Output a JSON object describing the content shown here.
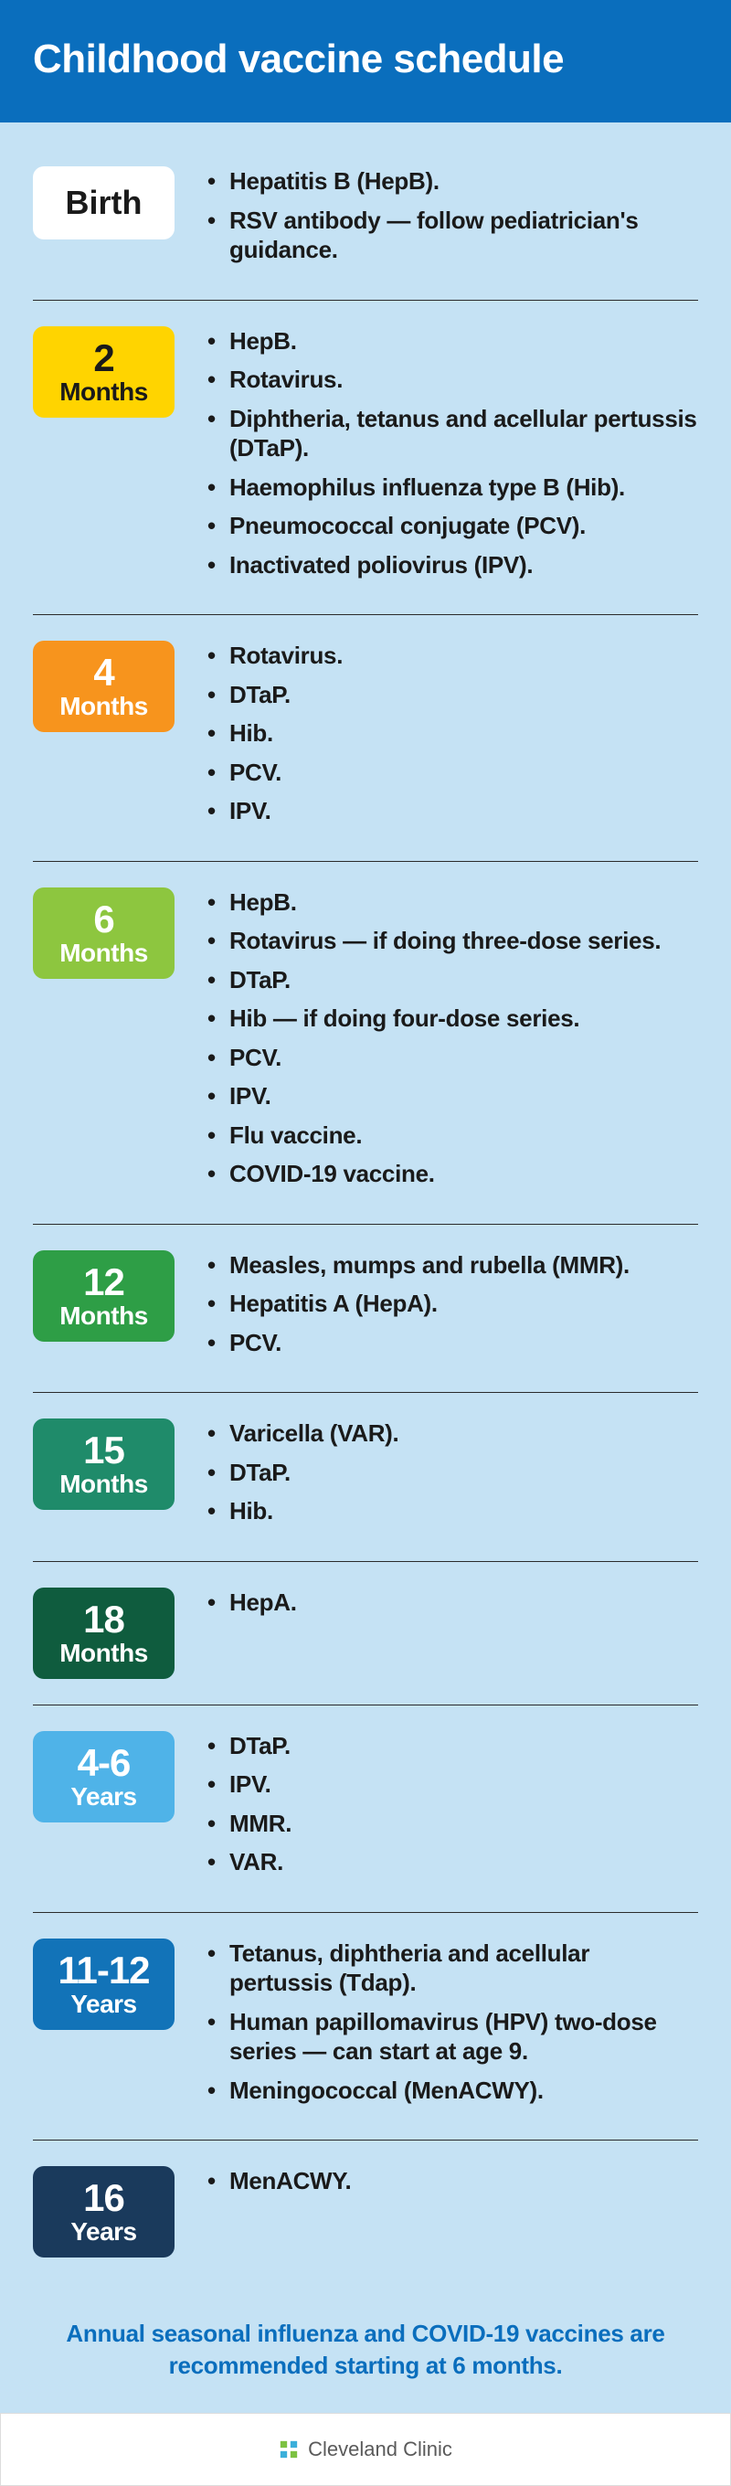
{
  "title": "Childhood vaccine schedule",
  "header_bg": "#0a6ebd",
  "body_bg": "#c5e2f4",
  "rows": [
    {
      "badge": {
        "single": "Birth",
        "bg": "#ffffff",
        "fg": "#1a1a1a"
      },
      "items": [
        "Hepatitis B (HepB).",
        "RSV antibody — follow pediatrician's guidance."
      ]
    },
    {
      "badge": {
        "num": "2",
        "unit": "Months",
        "bg": "#ffd400",
        "fg": "#1a1a1a"
      },
      "items": [
        "HepB.",
        "Rotavirus.",
        "Diphtheria, tetanus and acellular pertussis (DTaP).",
        "Haemophilus influenza type B (Hib).",
        "Pneumococcal conjugate (PCV).",
        "Inactivated poliovirus (IPV)."
      ]
    },
    {
      "badge": {
        "num": "4",
        "unit": "Months",
        "bg": "#f7941d",
        "fg": "#ffffff"
      },
      "items": [
        "Rotavirus.",
        "DTaP.",
        "Hib.",
        "PCV.",
        "IPV."
      ]
    },
    {
      "badge": {
        "num": "6",
        "unit": "Months",
        "bg": "#8dc63f",
        "fg": "#ffffff"
      },
      "items": [
        "HepB.",
        "Rotavirus — if doing three-dose series.",
        "DTaP.",
        "Hib — if doing four-dose series.",
        "PCV.",
        "IPV.",
        "Flu vaccine.",
        "COVID-19 vaccine."
      ]
    },
    {
      "badge": {
        "num": "12",
        "unit": "Months",
        "bg": "#2e9e46",
        "fg": "#ffffff"
      },
      "items": [
        "Measles, mumps and rubella (MMR).",
        "Hepatitis A (HepA).",
        "PCV."
      ]
    },
    {
      "badge": {
        "num": "15",
        "unit": "Months",
        "bg": "#1f8b6a",
        "fg": "#ffffff"
      },
      "items": [
        "Varicella (VAR).",
        "DTaP.",
        "Hib."
      ]
    },
    {
      "badge": {
        "num": "18",
        "unit": "Months",
        "bg": "#0f5c3e",
        "fg": "#ffffff"
      },
      "items": [
        "HepA."
      ]
    },
    {
      "badge": {
        "num": "4-6",
        "unit": "Years",
        "bg": "#4fb3e8",
        "fg": "#ffffff"
      },
      "items": [
        "DTaP.",
        "IPV.",
        "MMR.",
        "VAR."
      ]
    },
    {
      "badge": {
        "num": "11-12",
        "unit": "Years",
        "bg": "#1273b8",
        "fg": "#ffffff"
      },
      "items": [
        "Tetanus, diphtheria and acellular pertussis (Tdap).",
        "Human papillomavirus (HPV) two-dose series — can start at age 9.",
        "Meningococcal (MenACWY)."
      ]
    },
    {
      "badge": {
        "num": "16",
        "unit": "Years",
        "bg": "#1a3a5c",
        "fg": "#ffffff"
      },
      "items": [
        "MenACWY."
      ]
    }
  ],
  "footnote": "Annual seasonal influenza and COVID-19 vaccines are recommended starting at 6 months.",
  "logo_text": "Cleveland Clinic",
  "logo_color": "#5a5a5a"
}
